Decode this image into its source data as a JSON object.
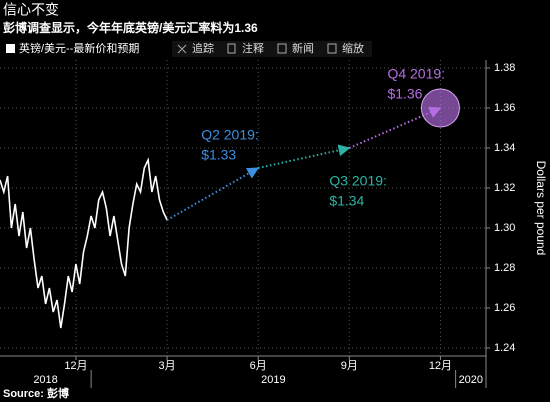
{
  "chart_data": {
    "type": "line",
    "title": "信心不变",
    "subtitle": "彭博调查显示，今年年底英镑/美元汇率料为1.36",
    "toolbar": [
      "追踪",
      "注释",
      "新闻",
      "缩放"
    ],
    "y_label": "Dollars per pound",
    "source": "Source: 彭博",
    "xlim": [
      "2018-10",
      "2020-02"
    ],
    "xticks": [
      {
        "value": "2018-12",
        "label": "12月"
      },
      {
        "value": "2019-03",
        "label": "3月"
      },
      {
        "value": "2019-06",
        "label": "6月"
      },
      {
        "value": "2019-09",
        "label": "9月"
      },
      {
        "value": "2019-12",
        "label": "12月"
      }
    ],
    "years": [
      "2018",
      "2019",
      "2020"
    ],
    "ylim": [
      1.24,
      1.38
    ],
    "yticks": [
      1.24,
      1.26,
      1.28,
      {
        "value": 1.3,
        "label": "1.30"
      },
      1.32,
      1.34,
      1.36,
      1.38
    ],
    "grid": true,
    "series": [
      {
        "name": "英镑/美元--最新价和预期",
        "color": "#ffffff",
        "values": [
          1.324,
          1.318,
          1.326,
          1.3,
          1.312,
          1.296,
          1.308,
          1.29,
          1.3,
          1.284,
          1.27,
          1.276,
          1.262,
          1.27,
          1.258,
          1.264,
          1.25,
          1.262,
          1.276,
          1.268,
          1.282,
          1.272,
          1.288,
          1.296,
          1.306,
          1.3,
          1.314,
          1.318,
          1.31,
          1.296,
          1.306,
          1.294,
          1.282,
          1.276,
          1.3,
          1.312,
          1.322,
          1.318,
          1.33,
          1.334,
          1.318,
          1.326,
          1.314,
          1.308,
          1.304
        ]
      },
      {
        "x": [
          "2019-03",
          "2019-06",
          "2019-09",
          "2019-12"
        ],
        "values": [
          1.304,
          1.33,
          1.34,
          1.36
        ],
        "value_labels": [
          null,
          "$1.33",
          "$1.34",
          "$1.36"
        ],
        "point_labels": [
          null,
          "Q2 2019:",
          "Q3 2019:",
          "Q4 2019:"
        ],
        "colors": [
          null,
          "#3d8fe0",
          "#2ab3a6",
          "#b56ee2"
        ]
      }
    ]
  }
}
